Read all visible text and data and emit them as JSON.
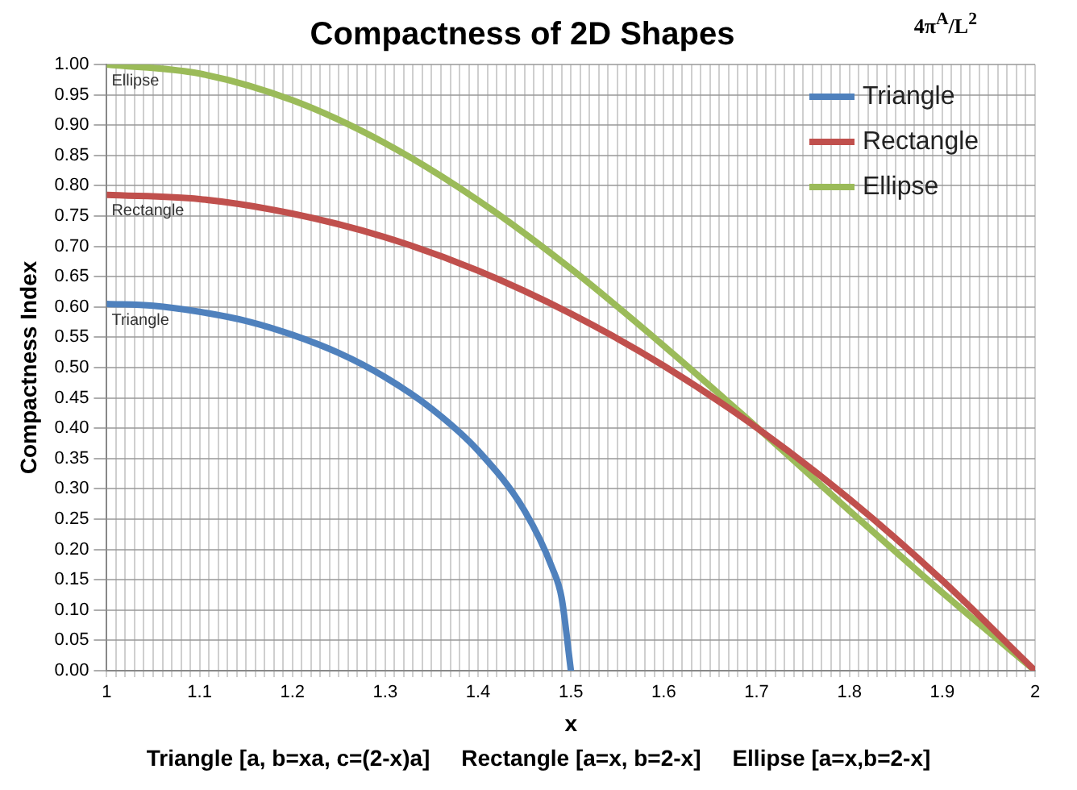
{
  "chart_data": {
    "type": "line",
    "title": "Compactness of 2D Shapes",
    "xlabel": "x",
    "ylabel": "Compactness Index",
    "series": [
      {
        "name": "Triangle",
        "color": "#4f81bd",
        "x": [
          1,
          1.05,
          1.1,
          1.15,
          1.2,
          1.25,
          1.3,
          1.35,
          1.4,
          1.45,
          1.48,
          1.49,
          1.5
        ],
        "values": [
          0.605,
          0.602,
          0.592,
          0.577,
          0.554,
          0.524,
          0.484,
          0.432,
          0.363,
          0.264,
          0.169,
          0.12,
          0
        ]
      },
      {
        "name": "Rectangle",
        "color": "#c0504d",
        "x": [
          1,
          1.1,
          1.2,
          1.3,
          1.4,
          1.5,
          1.6,
          1.7,
          1.8,
          1.9,
          2
        ],
        "values": [
          0.785,
          0.778,
          0.754,
          0.715,
          0.66,
          0.589,
          0.503,
          0.401,
          0.283,
          0.149,
          0
        ]
      },
      {
        "name": "Ellipse",
        "color": "#9bbb59",
        "x": [
          1,
          1.1,
          1.2,
          1.3,
          1.4,
          1.5,
          1.6,
          1.7,
          1.8,
          1.9,
          2
        ],
        "values": [
          1,
          0.985,
          0.941,
          0.87,
          0.776,
          0.663,
          0.536,
          0.402,
          0.264,
          0.129,
          0
        ]
      }
    ],
    "xlim": [
      1,
      2
    ],
    "xticks": [
      1,
      {
        "value": 1.01,
        "label": null
      },
      {
        "value": 1.02,
        "label": null
      },
      {
        "value": 1.03,
        "label": null
      },
      {
        "value": 1.04,
        "label": null
      },
      {
        "value": 1.05,
        "label": null
      },
      {
        "value": 1.06,
        "label": null
      },
      {
        "value": 1.07,
        "label": null
      },
      {
        "value": 1.08,
        "label": null
      },
      {
        "value": 1.09,
        "label": null
      },
      1.1,
      {
        "value": 1.11,
        "label": null
      },
      {
        "value": 1.12,
        "label": null
      },
      {
        "value": 1.13,
        "label": null
      },
      {
        "value": 1.14,
        "label": null
      },
      {
        "value": 1.15,
        "label": null
      },
      {
        "value": 1.16,
        "label": null
      },
      {
        "value": 1.17,
        "label": null
      },
      {
        "value": 1.18,
        "label": null
      },
      {
        "value": 1.19,
        "label": null
      },
      1.2,
      {
        "value": 1.21,
        "label": null
      },
      {
        "value": 1.22,
        "label": null
      },
      {
        "value": 1.23,
        "label": null
      },
      {
        "value": 1.24,
        "label": null
      },
      {
        "value": 1.25,
        "label": null
      },
      {
        "value": 1.26,
        "label": null
      },
      {
        "value": 1.27,
        "label": null
      },
      {
        "value": 1.28,
        "label": null
      },
      {
        "value": 1.29,
        "label": null
      },
      1.3,
      {
        "value": 1.31,
        "label": null
      },
      {
        "value": 1.32,
        "label": null
      },
      {
        "value": 1.33,
        "label": null
      },
      {
        "value": 1.34,
        "label": null
      },
      {
        "value": 1.35,
        "label": null
      },
      {
        "value": 1.36,
        "label": null
      },
      {
        "value": 1.37,
        "label": null
      },
      {
        "value": 1.38,
        "label": null
      },
      {
        "value": 1.39,
        "label": null
      },
      1.4,
      {
        "value": 1.41,
        "label": null
      },
      {
        "value": 1.42,
        "label": null
      },
      {
        "value": 1.43,
        "label": null
      },
      {
        "value": 1.44,
        "label": null
      },
      {
        "value": 1.45,
        "label": null
      },
      {
        "value": 1.46,
        "label": null
      },
      {
        "value": 1.47,
        "label": null
      },
      {
        "value": 1.48,
        "label": null
      },
      {
        "value": 1.49,
        "label": null
      },
      1.5,
      {
        "value": 1.51,
        "label": null
      },
      {
        "value": 1.52,
        "label": null
      },
      {
        "value": 1.53,
        "label": null
      },
      {
        "value": 1.54,
        "label": null
      },
      {
        "value": 1.55,
        "label": null
      },
      {
        "value": 1.56,
        "label": null
      },
      {
        "value": 1.57,
        "label": null
      },
      {
        "value": 1.58,
        "label": null
      },
      {
        "value": 1.59,
        "label": null
      },
      1.6,
      {
        "value": 1.61,
        "label": null
      },
      {
        "value": 1.62,
        "label": null
      },
      {
        "value": 1.63,
        "label": null
      },
      {
        "value": 1.64,
        "label": null
      },
      {
        "value": 1.65,
        "label": null
      },
      {
        "value": 1.66,
        "label": null
      },
      {
        "value": 1.67,
        "label": null
      },
      {
        "value": 1.68,
        "label": null
      },
      {
        "value": 1.69,
        "label": null
      },
      1.7,
      {
        "value": 1.71,
        "label": null
      },
      {
        "value": 1.72,
        "label": null
      },
      {
        "value": 1.73,
        "label": null
      },
      {
        "value": 1.74,
        "label": null
      },
      {
        "value": 1.75,
        "label": null
      },
      {
        "value": 1.76,
        "label": null
      },
      {
        "value": 1.77,
        "label": null
      },
      {
        "value": 1.78,
        "label": null
      },
      {
        "value": 1.79,
        "label": null
      },
      1.8,
      {
        "value": 1.81,
        "label": null
      },
      {
        "value": 1.82,
        "label": null
      },
      {
        "value": 1.83,
        "label": null
      },
      {
        "value": 1.84,
        "label": null
      },
      {
        "value": 1.85,
        "label": null
      },
      {
        "value": 1.86,
        "label": null
      },
      {
        "value": 1.87,
        "label": null
      },
      {
        "value": 1.88,
        "label": null
      },
      {
        "value": 1.89,
        "label": null
      },
      1.9,
      {
        "value": 1.91,
        "label": null
      },
      {
        "value": 1.92,
        "label": null
      },
      {
        "value": 1.93,
        "label": null
      },
      {
        "value": 1.94,
        "label": null
      },
      {
        "value": 1.95,
        "label": null
      },
      {
        "value": 1.96,
        "label": null
      },
      {
        "value": 1.97,
        "label": null
      },
      {
        "value": 1.98,
        "label": null
      },
      {
        "value": 1.99,
        "label": null
      },
      2
    ],
    "ylim": [
      0,
      1
    ],
    "yticks": [
      {
        "value": 0,
        "label": "0.00"
      },
      {
        "value": 0.05,
        "label": "0.05"
      },
      {
        "value": 0.1,
        "label": "0.10"
      },
      {
        "value": 0.15,
        "label": "0.15"
      },
      {
        "value": 0.2,
        "label": "0.20"
      },
      {
        "value": 0.25,
        "label": "0.25"
      },
      {
        "value": 0.3,
        "label": "0.30"
      },
      {
        "value": 0.35,
        "label": "0.35"
      },
      {
        "value": 0.4,
        "label": "0.40"
      },
      {
        "value": 0.45,
        "label": "0.45"
      },
      {
        "value": 0.5,
        "label": "0.50"
      },
      {
        "value": 0.55,
        "label": "0.55"
      },
      {
        "value": 0.6,
        "label": "0.60"
      },
      {
        "value": 0.65,
        "label": "0.65"
      },
      {
        "value": 0.7,
        "label": "0.70"
      },
      {
        "value": 0.75,
        "label": "0.75"
      },
      {
        "value": 0.8,
        "label": "0.80"
      },
      {
        "value": 0.85,
        "label": "0.85"
      },
      {
        "value": 0.9,
        "label": "0.90"
      },
      {
        "value": 0.95,
        "label": "0.95"
      },
      {
        "value": 1,
        "label": "1.00"
      }
    ],
    "grid": true,
    "legend": "top right",
    "marker": "none",
    "line_style": "solid",
    "annotations": [
      "4π$^{A}$/L$^{2}$",
      "Triangle [a, b=xa, c=(2-x)a]     Rectangle [a=x, b=2-x]     Ellipse [a=x,b=2-x]"
    ]
  }
}
